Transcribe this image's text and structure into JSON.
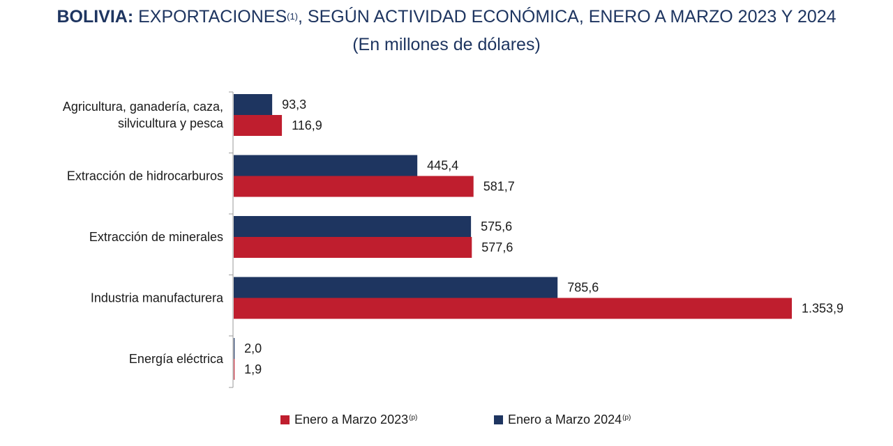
{
  "title": {
    "bold": "BOLIVIA:",
    "main": " EXPORTACIONES",
    "sup": "(1)",
    "rest": ", SEGÚN ACTIVIDAD ECONÓMICA, ENERO A MARZO 2023 Y 2024"
  },
  "subtitle": "(En millones de dólares)",
  "colors": {
    "series_2024": "#1e3560",
    "series_2023": "#bf1e2e"
  },
  "chart_data": {
    "type": "bar",
    "orientation": "horizontal",
    "categories": [
      [
        "Agricultura, ganadería, caza,",
        "silvicultura y pesca"
      ],
      [
        "Extracción de hidrocarburos"
      ],
      [
        "Extracción de minerales"
      ],
      [
        "Industria manufacturera"
      ],
      [
        "Energía eléctrica"
      ]
    ],
    "series": [
      {
        "name": "Enero a Marzo 2024",
        "legend_sup": "(p)",
        "color": "#1e3560",
        "values": [
          93.3,
          445.4,
          575.6,
          785.6,
          2.0
        ],
        "labels": [
          "93,3",
          "445,4",
          "575,6",
          "785,6",
          "2,0"
        ]
      },
      {
        "name": "Enero a Marzo 2023",
        "legend_sup": "(p)",
        "color": "#bf1e2e",
        "values": [
          116.9,
          581.7,
          577.6,
          1353.9,
          1.9
        ],
        "labels": [
          "116,9",
          "581,7",
          "577,6",
          "1.353,9",
          "1,9"
        ]
      }
    ],
    "legend": [
      {
        "series": 1,
        "label": "Enero a Marzo 2023",
        "sup": "(p)"
      },
      {
        "series": 0,
        "label": "Enero a Marzo 2024",
        "sup": "(p)"
      }
    ],
    "legend_position": "bottom",
    "grid": false
  }
}
